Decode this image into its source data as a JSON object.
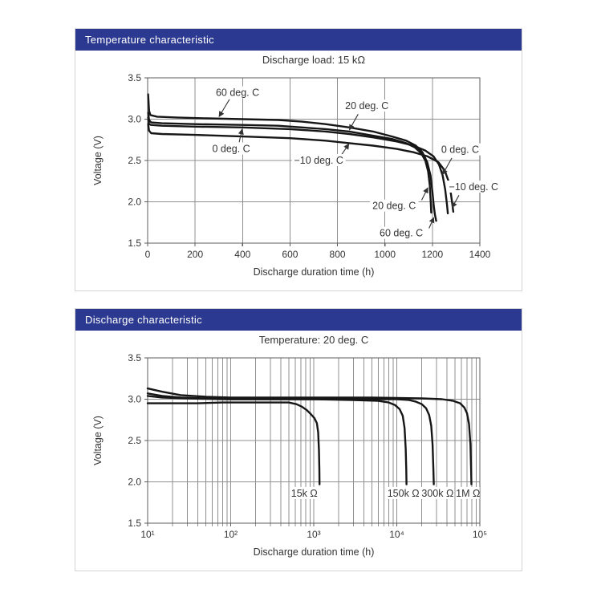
{
  "colors": {
    "banner_bg": "#2b3990",
    "banner_text": "#ffffff",
    "grid": "#8f8f8f",
    "frame": "#5c5c5c",
    "curve": "#161616",
    "annotation": "#333333",
    "text": "#333333"
  },
  "panels": [
    {
      "banner": "Temperature characteristic"
    },
    {
      "banner": "Discharge characteristic"
    }
  ],
  "chart_data": [
    {
      "type": "line",
      "title": "Discharge load: 15 kΩ",
      "xlabel": "Discharge duration time (h)",
      "ylabel": "Voltage (V)",
      "xscale": "linear",
      "xlim": [
        0,
        1400
      ],
      "ylim": [
        1.5,
        3.5
      ],
      "grid": true,
      "legend_position": "annotated-on-plot",
      "xticks": [
        {
          "v": 0,
          "label": "0"
        },
        {
          "v": 200,
          "label": "200"
        },
        {
          "v": 400,
          "label": "400"
        },
        {
          "v": 600,
          "label": "600"
        },
        {
          "v": 800,
          "label": "800"
        },
        {
          "v": 1000,
          "label": "1000"
        },
        {
          "v": 1200,
          "label": "1200"
        },
        {
          "v": 1400,
          "label": "1400"
        }
      ],
      "yticks": [
        {
          "v": 1.5,
          "label": "1.5"
        },
        {
          "v": 2.0,
          "label": "2.0"
        },
        {
          "v": 2.5,
          "label": "2.5"
        },
        {
          "v": 3.0,
          "label": "3.0"
        },
        {
          "v": 3.5,
          "label": "3.5"
        }
      ],
      "xgrid": [
        200,
        400,
        600,
        800,
        1000,
        1200
      ],
      "ygrid": [
        2.0,
        2.5,
        3.0
      ],
      "series": [
        {
          "name": "60 deg. C",
          "points": [
            [
              2,
              3.3
            ],
            [
              6,
              3.1
            ],
            [
              12,
              3.05
            ],
            [
              40,
              3.03
            ],
            [
              120,
              3.02
            ],
            [
              250,
              3.01
            ],
            [
              400,
              3.0
            ],
            [
              550,
              2.99
            ],
            [
              650,
              2.97
            ],
            [
              750,
              2.94
            ],
            [
              850,
              2.9
            ],
            [
              950,
              2.85
            ],
            [
              1030,
              2.79
            ],
            [
              1090,
              2.74
            ],
            [
              1130,
              2.68
            ],
            [
              1158,
              2.6
            ],
            [
              1178,
              2.48
            ],
            [
              1192,
              2.32
            ],
            [
              1200,
              2.12
            ],
            [
              1206,
              1.95
            ],
            [
              1211,
              1.84
            ],
            [
              1216,
              1.77
            ]
          ]
        },
        {
          "name": "20 deg. C",
          "points": [
            [
              2,
              3.08
            ],
            [
              6,
              2.99
            ],
            [
              15,
              2.96
            ],
            [
              60,
              2.95
            ],
            [
              200,
              2.94
            ],
            [
              400,
              2.93
            ],
            [
              550,
              2.92
            ],
            [
              650,
              2.9
            ],
            [
              750,
              2.88
            ],
            [
              850,
              2.85
            ],
            [
              950,
              2.8
            ],
            [
              1030,
              2.76
            ],
            [
              1090,
              2.71
            ],
            [
              1125,
              2.66
            ],
            [
              1152,
              2.59
            ],
            [
              1170,
              2.5
            ],
            [
              1182,
              2.37
            ],
            [
              1189,
              2.2
            ],
            [
              1193,
              2.0
            ],
            [
              1195,
              1.87
            ]
          ]
        },
        {
          "name": "0 deg. C",
          "points": [
            [
              2,
              3.02
            ],
            [
              6,
              2.94
            ],
            [
              15,
              2.93
            ],
            [
              60,
              2.92
            ],
            [
              200,
              2.91
            ],
            [
              400,
              2.9
            ],
            [
              600,
              2.88
            ],
            [
              750,
              2.85
            ],
            [
              850,
              2.82
            ],
            [
              950,
              2.78
            ],
            [
              1050,
              2.73
            ],
            [
              1120,
              2.68
            ],
            [
              1170,
              2.62
            ],
            [
              1205,
              2.55
            ],
            [
              1228,
              2.45
            ],
            [
              1243,
              2.32
            ],
            [
              1254,
              2.15
            ],
            [
              1261,
              1.98
            ],
            [
              1265,
              1.86
            ]
          ]
        },
        {
          "name": "-10 deg. C",
          "points": [
            [
              2,
              2.94
            ],
            [
              6,
              2.86
            ],
            [
              15,
              2.83
            ],
            [
              60,
              2.82
            ],
            [
              200,
              2.81
            ],
            [
              400,
              2.79
            ],
            [
              600,
              2.77
            ],
            [
              750,
              2.74
            ],
            [
              850,
              2.71
            ],
            [
              950,
              2.68
            ],
            [
              1050,
              2.64
            ],
            [
              1120,
              2.6
            ],
            [
              1180,
              2.55
            ],
            [
              1225,
              2.48
            ],
            [
              1252,
              2.38
            ],
            [
              1268,
              2.25
            ],
            [
              1278,
              2.1
            ],
            [
              1284,
              1.97
            ],
            [
              1288,
              1.88
            ]
          ]
        }
      ],
      "annotations": [
        {
          "text": "60 deg. C",
          "lx": 379,
          "ly": 3.32,
          "sx": 345,
          "sy": 3.24,
          "ax": 301,
          "ay": 3.03
        },
        {
          "text": "20 deg. C",
          "lx": 924,
          "ly": 3.16,
          "sx": 887,
          "sy": 3.06,
          "ax": 850,
          "ay": 2.87
        },
        {
          "text": "0 deg. C",
          "lx": 352,
          "ly": 2.64,
          "sx": 386,
          "sy": 2.72,
          "ax": 398,
          "ay": 2.88
        },
        {
          "text": "−10 deg. C",
          "lx": 721,
          "ly": 2.5,
          "sx": 815,
          "sy": 2.56,
          "ax": 848,
          "ay": 2.7
        },
        {
          "text": "0 deg. C",
          "lx": 1317,
          "ly": 2.63,
          "sx": 1282,
          "sy": 2.53,
          "ax": 1243,
          "ay": 2.33
        },
        {
          "text": "20 deg. C",
          "lx": 1039,
          "ly": 1.95,
          "sx": 1155,
          "sy": 2.02,
          "ax": 1181,
          "ay": 2.17
        },
        {
          "text": "60 deg. C",
          "lx": 1069,
          "ly": 1.62,
          "sx": 1186,
          "sy": 1.68,
          "ax": 1206,
          "ay": 1.81
        },
        {
          "text": "−10 deg. C",
          "lx": 1374,
          "ly": 2.18,
          "sx": 1312,
          "sy": 2.08,
          "ax": 1283,
          "ay": 1.93
        }
      ]
    },
    {
      "type": "line",
      "title": "Temperature: 20 deg. C",
      "xlabel": "Discharge duration time (h)",
      "ylabel": "Voltage (V)",
      "xscale": "log",
      "xlim": [
        10,
        100000
      ],
      "ylim": [
        1.5,
        3.5
      ],
      "grid": true,
      "legend_position": "annotated-on-plot",
      "xticks": [
        {
          "v": 10,
          "label": "10¹"
        },
        {
          "v": 100,
          "label": "10²"
        },
        {
          "v": 1000,
          "label": "10³"
        },
        {
          "v": 10000,
          "label": "10⁴"
        },
        {
          "v": 100000,
          "label": "10⁵"
        }
      ],
      "yticks": [
        {
          "v": 1.5,
          "label": "1.5"
        },
        {
          "v": 2.0,
          "label": "2.0"
        },
        {
          "v": 2.5,
          "label": "2.5"
        },
        {
          "v": 3.0,
          "label": "3.0"
        },
        {
          "v": 3.5,
          "label": "3.5"
        }
      ],
      "xgrid": [],
      "ygrid": [
        2.0,
        2.5,
        3.0
      ],
      "series": [
        {
          "name": "15k Ω",
          "points": [
            [
              10,
              2.95
            ],
            [
              20,
              2.95
            ],
            [
              40,
              2.95
            ],
            [
              80,
              2.96
            ],
            [
              150,
              2.96
            ],
            [
              300,
              2.96
            ],
            [
              500,
              2.96
            ],
            [
              620,
              2.94
            ],
            [
              720,
              2.91
            ],
            [
              820,
              2.87
            ],
            [
              920,
              2.82
            ],
            [
              1020,
              2.77
            ],
            [
              1090,
              2.71
            ],
            [
              1130,
              2.6
            ],
            [
              1155,
              2.38
            ],
            [
              1168,
              2.15
            ],
            [
              1175,
              1.97
            ]
          ]
        },
        {
          "name": "150k Ω",
          "points": [
            [
              10,
              3.07
            ],
            [
              15,
              3.04
            ],
            [
              25,
              3.02
            ],
            [
              50,
              3.01
            ],
            [
              100,
              3.0
            ],
            [
              300,
              3.0
            ],
            [
              1000,
              3.0
            ],
            [
              3000,
              2.99
            ],
            [
              6000,
              2.98
            ],
            [
              8000,
              2.96
            ],
            [
              9500,
              2.93
            ],
            [
              10800,
              2.88
            ],
            [
              11800,
              2.8
            ],
            [
              12400,
              2.65
            ],
            [
              12800,
              2.4
            ],
            [
              13000,
              2.15
            ],
            [
              13100,
              1.97
            ]
          ]
        },
        {
          "name": "300k Ω",
          "points": [
            [
              10,
              3.04
            ],
            [
              15,
              3.02
            ],
            [
              30,
              3.01
            ],
            [
              80,
              3.0
            ],
            [
              300,
              3.0
            ],
            [
              3000,
              3.0
            ],
            [
              10000,
              3.0
            ],
            [
              14000,
              2.99
            ],
            [
              17000,
              2.97
            ],
            [
              20000,
              2.94
            ],
            [
              22500,
              2.89
            ],
            [
              24500,
              2.81
            ],
            [
              26000,
              2.68
            ],
            [
              27000,
              2.45
            ],
            [
              27600,
              2.15
            ],
            [
              27900,
              1.97
            ]
          ]
        },
        {
          "name": "1M Ω",
          "points": [
            [
              10,
              3.13
            ],
            [
              15,
              3.09
            ],
            [
              25,
              3.05
            ],
            [
              50,
              3.03
            ],
            [
              100,
              3.02
            ],
            [
              500,
              3.02
            ],
            [
              5000,
              3.02
            ],
            [
              20000,
              3.01
            ],
            [
              35000,
              3.0
            ],
            [
              48000,
              2.98
            ],
            [
              58000,
              2.95
            ],
            [
              65000,
              2.9
            ],
            [
              70000,
              2.83
            ],
            [
              74000,
              2.7
            ],
            [
              77000,
              2.45
            ],
            [
              78500,
              2.15
            ],
            [
              79200,
              1.97
            ]
          ]
        }
      ],
      "annotations": [
        {
          "text": "15k Ω",
          "lx": 770,
          "ly": 1.86
        },
        {
          "text": "150k Ω",
          "lx": 12000,
          "ly": 1.86
        },
        {
          "text": "300k Ω",
          "lx": 31000,
          "ly": 1.86
        },
        {
          "text": "1M Ω",
          "lx": 72000,
          "ly": 1.86
        }
      ]
    }
  ]
}
